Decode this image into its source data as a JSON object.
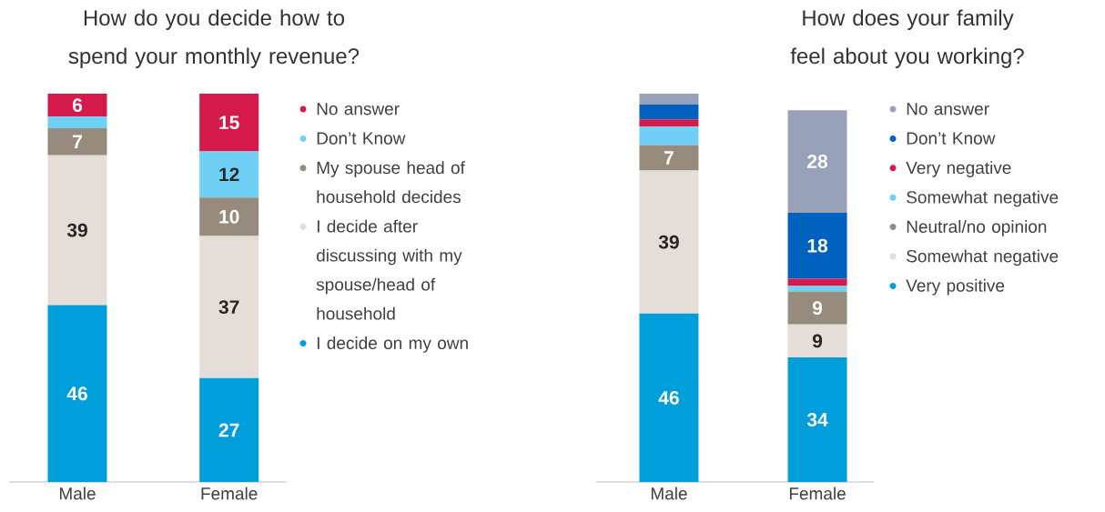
{
  "chart_data": [
    {
      "type": "bar",
      "title": "How do you decide how to spend your monthly revenue?",
      "stacked": true,
      "legend": "right",
      "categories": [
        "Male",
        "Female"
      ],
      "series": [
        {
          "name": "I decide on my own",
          "color": "#009fdb",
          "values": [
            46,
            27
          ],
          "value_labels": [
            "46",
            "27"
          ]
        },
        {
          "name": "I decide after discussing with my spouse/head of household",
          "color": "#e5ddd8",
          "values": [
            39,
            37
          ],
          "value_labels": [
            "39",
            "37"
          ]
        },
        {
          "name": "My spouse head of household decides",
          "color": "#978b7d",
          "values": [
            7,
            10
          ],
          "value_labels": [
            "7",
            "10"
          ]
        },
        {
          "name": "Don’t Know",
          "color": "#6fcff4",
          "values": [
            3,
            12
          ],
          "value_labels": [
            null,
            "12"
          ]
        },
        {
          "name": "No answer",
          "color": "#d31a4b",
          "values": [
            6,
            15
          ],
          "value_labels": [
            "6",
            "15"
          ]
        }
      ]
    },
    {
      "type": "bar",
      "title": "How does your family feel about you working?",
      "stacked": true,
      "legend": "right",
      "categories": [
        "Male",
        "Female"
      ],
      "series": [
        {
          "name": "Very positive",
          "color": "#009fdb",
          "values": [
            46,
            34
          ],
          "value_labels": [
            "46",
            "34"
          ]
        },
        {
          "name": "Somewhat negative",
          "color": "#e5ddd8",
          "values": [
            39,
            9
          ],
          "value_labels": [
            "39",
            "9"
          ]
        },
        {
          "name": "Neutral/no opinion",
          "color": "#978b7d",
          "values": [
            7,
            9
          ],
          "value_labels": [
            "7",
            "9"
          ]
        },
        {
          "name": "Somewhat negative",
          "color": "#6fcff4",
          "values": [
            5,
            1.5
          ],
          "value_labels": [
            null,
            null
          ]
        },
        {
          "name": "Very negative",
          "color": "#d31a4b",
          "values": [
            2,
            2
          ],
          "value_labels": [
            null,
            null
          ]
        },
        {
          "name": "Don’t Know",
          "color": "#0061bf",
          "values": [
            4,
            18
          ],
          "value_labels": [
            null,
            "18"
          ]
        },
        {
          "name": "No answer",
          "color": "#98a1ba",
          "values": [
            3,
            28
          ],
          "value_labels": [
            null,
            "28"
          ]
        }
      ]
    }
  ]
}
